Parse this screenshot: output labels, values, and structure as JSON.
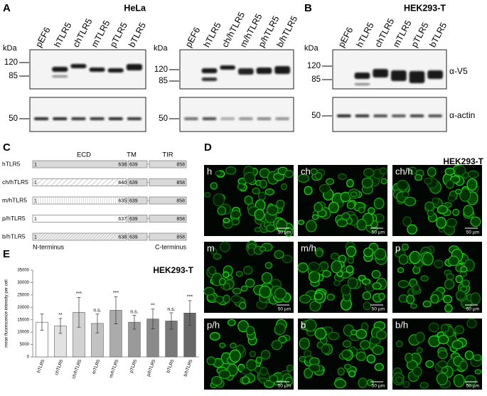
{
  "panel_a": {
    "label": "A",
    "title": "HeLa",
    "kda": "kDa",
    "blot1": {
      "lanes": [
        "pEF6",
        "hTLR5",
        "chTLR5",
        "mTLR5",
        "pTLR5",
        "bTLR5"
      ],
      "markers": [
        120,
        85,
        50
      ]
    },
    "blot2": {
      "lanes": [
        "pEF6",
        "hTLR5",
        "ch/hTLR5",
        "m/hTLR5",
        "p/hTLR5",
        "b/hTLR5"
      ],
      "markers": [
        120,
        85,
        50
      ]
    }
  },
  "panel_b": {
    "label": "B",
    "title": "HEK293-T",
    "kda": "kDa",
    "lanes": [
      "pEF6",
      "hTLR5",
      "chTLR5",
      "mTLR5",
      "pTLR5",
      "bTLR5"
    ],
    "markers": [
      120,
      85,
      50
    ],
    "antibodies": [
      "α-V5",
      "α-actin"
    ]
  },
  "panel_c": {
    "label": "C",
    "headers": [
      "ECD",
      "TM",
      "TIR"
    ],
    "rows": [
      {
        "name": "hTLR5",
        "start": 1,
        "ecd_end": 638,
        "tm_start": 639,
        "end": 858
      },
      {
        "name": "ch/hTLR5",
        "start": 1,
        "ecd_end": 640,
        "tm_start": 639,
        "end": 858
      },
      {
        "name": "m/hTLR5",
        "start": 1,
        "ecd_end": 635,
        "tm_start": 639,
        "end": 858
      },
      {
        "name": "p/hTLR5",
        "start": 1,
        "ecd_end": 637,
        "tm_start": 639,
        "end": 858
      },
      {
        "name": "b/hTLR5",
        "start": 1,
        "ecd_end": 638,
        "tm_start": 639,
        "end": 858
      }
    ],
    "n_terminus": "N-terminus",
    "c_terminus": "C-terminus"
  },
  "panel_d": {
    "label": "D",
    "title": "HEK293-T",
    "images": [
      {
        "label": "h",
        "scale": "50 µm"
      },
      {
        "label": "ch",
        "scale": "50 µm"
      },
      {
        "label": "ch/h",
        "scale": "50 µm"
      },
      {
        "label": "m",
        "scale": "50 µm"
      },
      {
        "label": "m/h",
        "scale": "50 µm"
      },
      {
        "label": "p",
        "scale": "50 µm"
      },
      {
        "label": "p/h",
        "scale": "50 µm"
      },
      {
        "label": "b",
        "scale": "50 µm"
      },
      {
        "label": "b/h",
        "scale": "50 µm"
      }
    ]
  },
  "chart_data": {
    "type": "bar",
    "panel_label": "E",
    "title": "HEK293-T",
    "ylabel": "mean fluorescence intensity per cell",
    "categories": [
      "hTLR5",
      "chTLR5",
      "ch/hTLR5",
      "mTLR5",
      "m/hTLR5",
      "pTLR5",
      "p/hTLR5",
      "bTLR5",
      "b/hTLR5"
    ],
    "values": [
      14000,
      12500,
      18000,
      13500,
      18800,
      14000,
      15300,
      14500,
      17700
    ],
    "errors": [
      3300,
      3000,
      6000,
      3800,
      5500,
      2800,
      4000,
      3300,
      5000
    ],
    "significance": [
      null,
      "**",
      "***",
      "n.s.",
      "***",
      "n.s.",
      "**",
      "n.s.",
      "***"
    ],
    "colors": [
      "#ffffff",
      "#e2e2e2",
      "#d2d2d2",
      "#c2c2c2",
      "#ababab",
      "#9a9a9a",
      "#8a8a8a",
      "#797979",
      "#686868"
    ],
    "ylim": [
      0,
      35000
    ],
    "yticks": [
      0,
      5000,
      10000,
      15000,
      20000,
      25000,
      30000,
      35000
    ]
  }
}
